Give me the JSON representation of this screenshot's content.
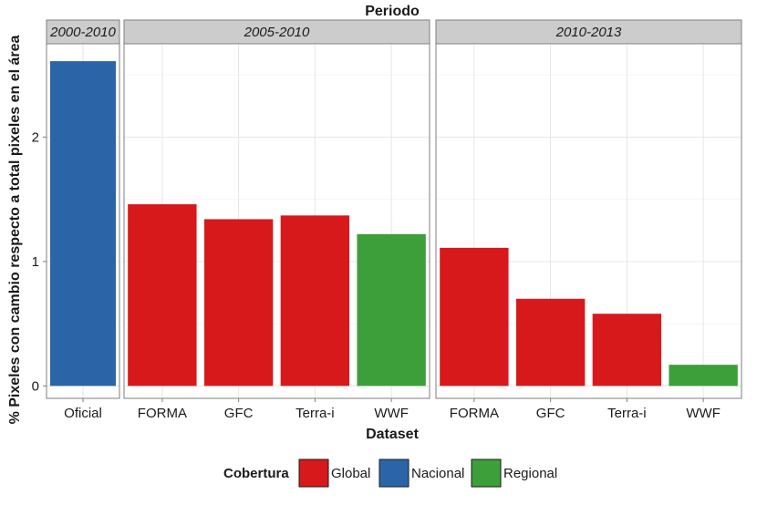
{
  "chart_data": {
    "type": "bar",
    "title": "Periodo",
    "xlabel": "Dataset",
    "ylabel": "% Pixeles con cambio respecto a total pixeles en el área",
    "ylim": [
      -0.1,
      2.75
    ],
    "yticks": [
      0,
      1,
      2
    ],
    "grid": true,
    "legend_position": "bottom",
    "legend": {
      "title": "Cobertura",
      "entries": [
        {
          "name": "Global",
          "color": "#d7191c"
        },
        {
          "name": "Nacional",
          "color": "#2b65a8"
        },
        {
          "name": "Regional",
          "color": "#3d9f3a"
        }
      ]
    },
    "facets": [
      {
        "label": "2000-2010",
        "categories": [
          "Oficial"
        ],
        "values": [
          2.61
        ],
        "cobertura": [
          "Nacional"
        ]
      },
      {
        "label": "2005-2010",
        "categories": [
          "FORMA",
          "GFC",
          "Terra-i",
          "WWF"
        ],
        "values": [
          1.46,
          1.34,
          1.37,
          1.22
        ],
        "cobertura": [
          "Global",
          "Global",
          "Global",
          "Regional"
        ]
      },
      {
        "label": "2010-2013",
        "categories": [
          "FORMA",
          "GFC",
          "Terra-i",
          "WWF"
        ],
        "values": [
          1.11,
          0.7,
          0.58,
          0.17
        ],
        "cobertura": [
          "Global",
          "Global",
          "Global",
          "Regional"
        ]
      }
    ]
  }
}
